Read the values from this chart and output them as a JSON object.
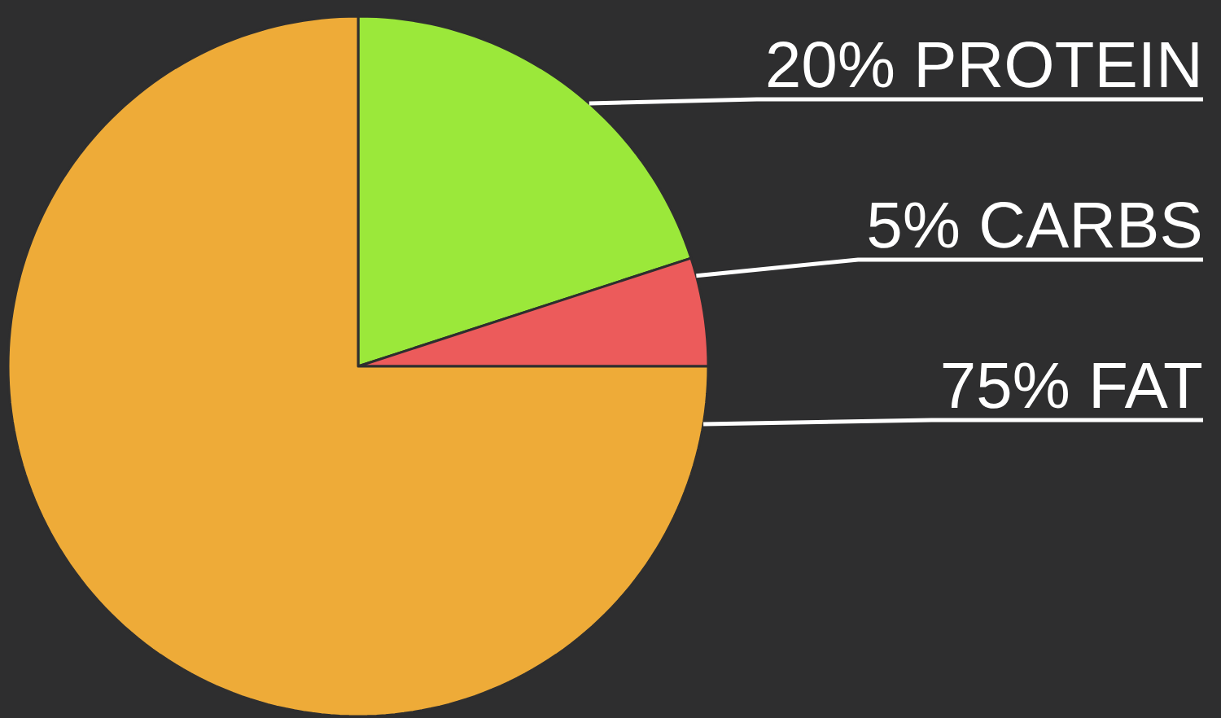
{
  "chart_data": {
    "type": "pie",
    "categories": [
      "PROTEIN",
      "CARBS",
      "FAT"
    ],
    "values": [
      20,
      5,
      75
    ],
    "value_labels": [
      "20%",
      "5%",
      "75%"
    ],
    "colors": [
      "#9be83a",
      "#ec5b5b",
      "#eeab38"
    ]
  }
}
